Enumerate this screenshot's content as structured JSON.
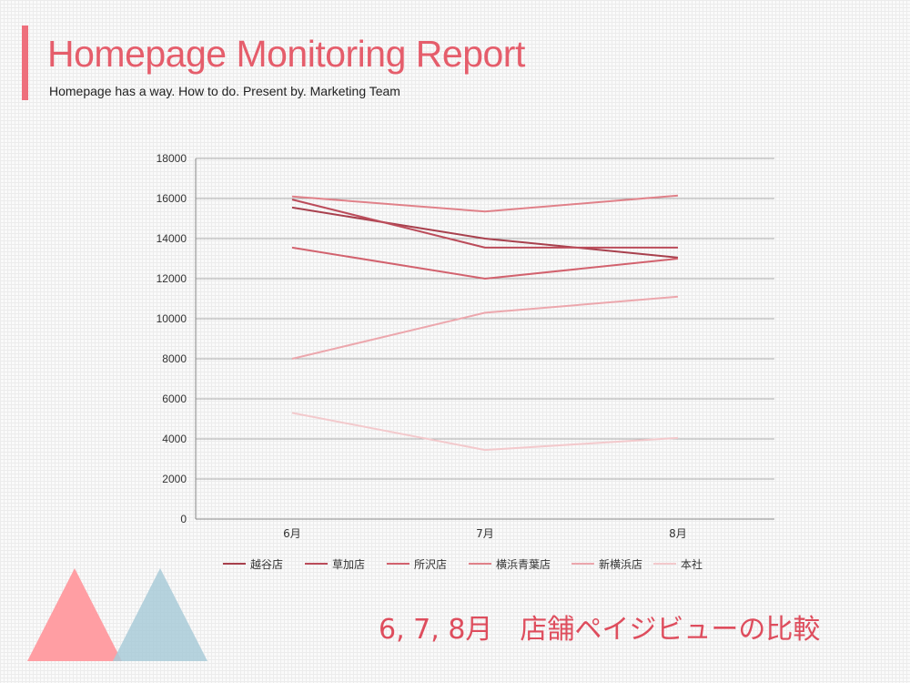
{
  "header": {
    "title": "Homepage Monitoring Report",
    "subtitle": "Homepage has a way. How to do. Present by. Marketing Team"
  },
  "caption": "6, 7, 8月　店舗ペイジビューの比較",
  "colors": {
    "accent": "#ee6f7c",
    "title": "#e55d6b",
    "caption": "#de4d5d",
    "triangle_pink": "#ff9ea3",
    "triangle_blue": "#a9cbd8"
  },
  "chart_data": {
    "type": "line",
    "title": "",
    "xlabel": "",
    "ylabel": "",
    "categories": [
      "6月",
      "7月",
      "8月"
    ],
    "ylim": [
      0,
      18000
    ],
    "yticks": [
      0,
      2000,
      4000,
      6000,
      8000,
      10000,
      12000,
      14000,
      16000,
      18000
    ],
    "grid": true,
    "legend_position": "bottom",
    "series": [
      {
        "name": "越谷店",
        "color": "#a8404d",
        "values": [
          15550,
          14000,
          13050
        ]
      },
      {
        "name": "草加店",
        "color": "#bb4c5a",
        "values": [
          15950,
          13550,
          13550
        ]
      },
      {
        "name": "所沢店",
        "color": "#d2626e",
        "values": [
          13550,
          12000,
          13000
        ]
      },
      {
        "name": "横浜青葉店",
        "color": "#e08189",
        "values": [
          16100,
          15350,
          16150
        ]
      },
      {
        "name": "新横浜店",
        "color": "#eca7ad",
        "values": [
          8000,
          10300,
          11100
        ]
      },
      {
        "name": "本社",
        "color": "#f3c9cc",
        "values": [
          5300,
          3450,
          4050
        ]
      }
    ]
  }
}
